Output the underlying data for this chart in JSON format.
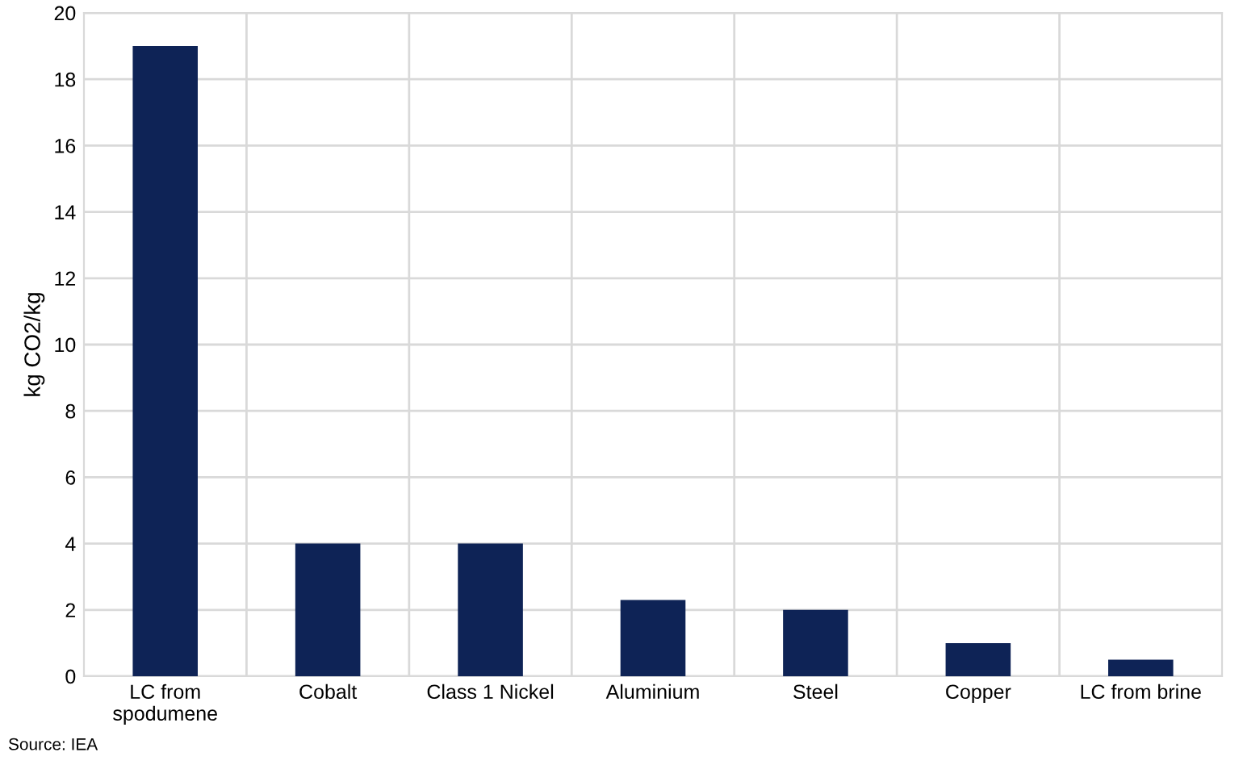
{
  "chart_data": {
    "type": "bar",
    "ylabel": "kg CO2/kg",
    "categories": [
      "LC from\nspodumene",
      "Cobalt",
      "Class 1 Nickel",
      "Aluminium",
      "Steel",
      "Copper",
      "LC from brine"
    ],
    "values": [
      19,
      4,
      4,
      2.3,
      2,
      1,
      0.5
    ],
    "color": "#0e2356",
    "ylim": [
      0,
      20
    ],
    "yticks": [
      0,
      2,
      4,
      6,
      8,
      10,
      12,
      14,
      16,
      18,
      20
    ],
    "grid": true,
    "annotations": [
      "Source: IEA"
    ]
  }
}
